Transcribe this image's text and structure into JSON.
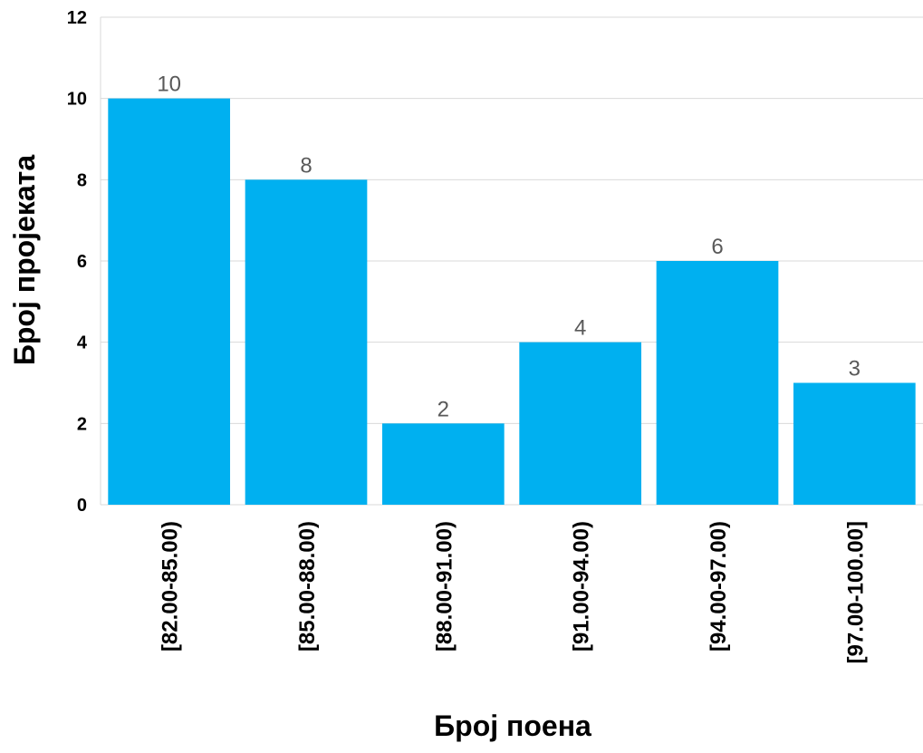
{
  "chart_data": {
    "type": "bar",
    "categories": [
      "[82.00-85.00)",
      "[85.00-88.00)",
      "[88.00-91.00)",
      "[91.00-94.00)",
      "[94.00-97.00)",
      "[97.00-100.00]"
    ],
    "values": [
      10,
      8,
      2,
      4,
      6,
      3
    ],
    "data_labels": [
      "10",
      "8",
      "2",
      "4",
      "6",
      "3"
    ],
    "yticks": [
      0,
      2,
      4,
      6,
      8,
      10,
      12
    ],
    "ylim": [
      0,
      12
    ],
    "xlabel": "Број поена",
    "ylabel": "Број пројеката",
    "grid": true,
    "bar_color": "#00b0f0"
  }
}
